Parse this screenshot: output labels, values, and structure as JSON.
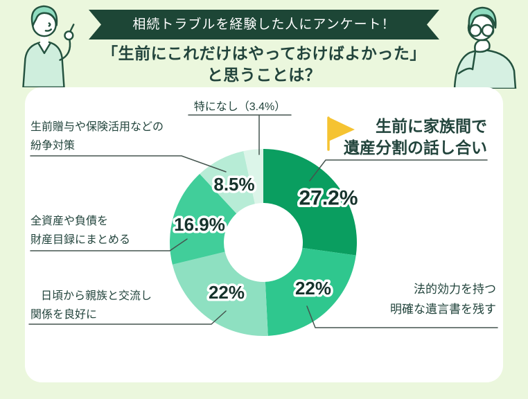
{
  "banner": {
    "label": "相続トラブルを経験した人にアンケート！"
  },
  "title": {
    "line1": "「生前にこれだけはやっておけばよかった」",
    "line2": "と思うことは？"
  },
  "chart_data": {
    "type": "pie",
    "subtype": "donut",
    "title": "「生前にこれだけはやっておけばよかった」と思うことは？ — 相続トラブルを経験した人にアンケート",
    "units": "%",
    "direction": "clockwise",
    "start_angle_deg": 0,
    "legend_position": "outside-callouts",
    "segments": [
      {
        "label": "生前に家族間で遺産分割の話し合い",
        "value": 27.2,
        "display": "27.2%",
        "color": "#0a9e60",
        "show_value_inside": true,
        "emphasized": true
      },
      {
        "label": "法的効力を持つ明確な遺言書を残す",
        "value": 22,
        "display": "22%",
        "color": "#2fc78e",
        "show_value_inside": true
      },
      {
        "label": "日頃から親族と交流し関係を良好に",
        "value": 22,
        "display": "22%",
        "color": "#8ee0c1",
        "show_value_inside": true
      },
      {
        "label": "全資産や負債を財産目録にまとめる",
        "value": 16.9,
        "display": "16.9%",
        "color": "#41ce9a",
        "show_value_inside": true
      },
      {
        "label": "生前贈与や保険活用などの紛争対策",
        "value": 8.5,
        "display": "8.5%",
        "color": "#b7ecd6",
        "show_value_inside": true
      },
      {
        "label": "特になし",
        "value": 3.4,
        "display": "3.4%",
        "color": "#dcf5e9",
        "show_value_inside": false
      }
    ]
  },
  "callouts": {
    "none": "特になし（3.4%）",
    "gift": {
      "line1": "生前贈与や保険活用などの",
      "line2": "紛争対策"
    },
    "inventory": {
      "line1": "全資産や負債を",
      "line2": "財産目録にまとめる"
    },
    "relations": {
      "line1": "日頃から親族と交流し",
      "line2": "関係を良好に"
    },
    "discussion": {
      "line1": "生前に家族間で",
      "line2": "遺産分割の話し合い"
    },
    "will": {
      "line1": "法的効力を持つ",
      "line2": "明確な遺言書を残す"
    }
  },
  "colors": {
    "background": "#ebf7dd",
    "card": "#ffffff",
    "banner_bg": "#1d4636",
    "banner_text": "#ffffff",
    "heading_text": "#22443c",
    "label_text": "#22443c",
    "leader_line": "#44544e",
    "flag": "#f5c332",
    "value_text": "#16332c",
    "value_outline": "#ffffff"
  }
}
